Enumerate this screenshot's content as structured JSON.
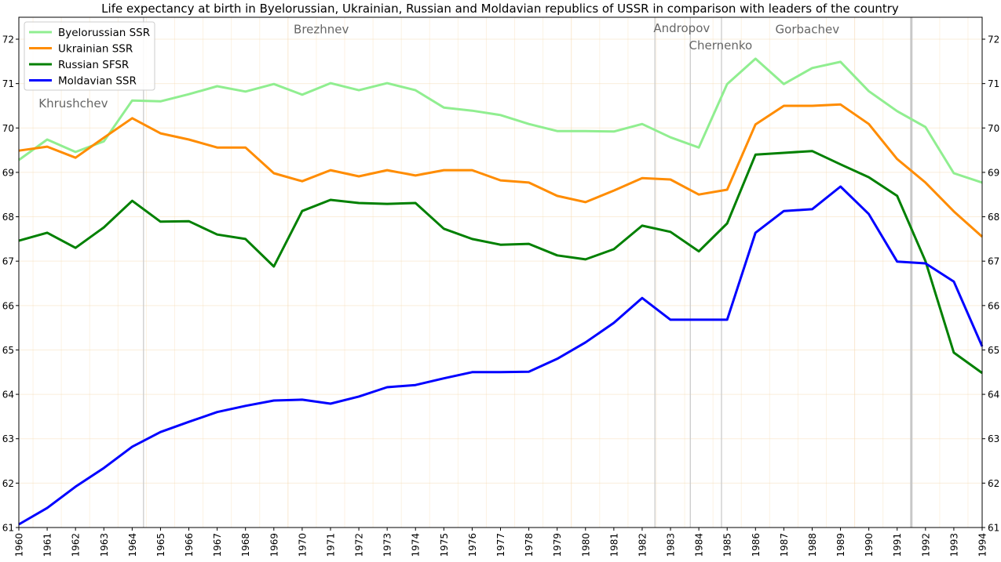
{
  "chart_data": {
    "type": "line",
    "title": "Life expectancy at birth in Byelorussian, Ukrainian, Russian and Moldavian republics of USSR in comparison with leaders of the country",
    "xlabel": "",
    "ylabel": "",
    "xlim": [
      1960,
      1994
    ],
    "ylim": [
      61,
      72.5
    ],
    "yticks": [
      61,
      62,
      63,
      64,
      65,
      66,
      67,
      68,
      69,
      70,
      71,
      72
    ],
    "grid": true,
    "legend_position": "top-left",
    "x": [
      1960,
      1961,
      1962,
      1963,
      1964,
      1965,
      1966,
      1967,
      1968,
      1969,
      1970,
      1971,
      1972,
      1973,
      1974,
      1975,
      1976,
      1977,
      1978,
      1979,
      1980,
      1981,
      1982,
      1983,
      1984,
      1985,
      1986,
      1987,
      1988,
      1989,
      1990,
      1991,
      1992,
      1993,
      1994
    ],
    "series": [
      {
        "name": "Byelorussian SSR",
        "color": "#90ee90",
        "values": [
          69.28,
          69.74,
          69.46,
          69.7,
          70.62,
          70.6,
          70.76,
          70.94,
          70.82,
          70.99,
          70.75,
          71.01,
          70.85,
          71.01,
          70.85,
          70.46,
          70.39,
          70.29,
          70.09,
          69.93,
          69.93,
          69.92,
          70.09,
          69.79,
          69.56,
          70.99,
          71.56,
          70.99,
          71.35,
          71.49,
          70.83,
          70.38,
          70.02,
          68.98,
          68.77
        ]
      },
      {
        "name": "Ukrainian SSR",
        "color": "#ff8c00",
        "values": [
          69.49,
          69.58,
          69.33,
          69.78,
          70.22,
          69.88,
          69.74,
          69.56,
          69.56,
          68.98,
          68.8,
          69.05,
          68.91,
          69.05,
          68.93,
          69.05,
          69.05,
          68.82,
          68.77,
          68.47,
          68.33,
          68.59,
          68.87,
          68.84,
          68.5,
          68.61,
          70.08,
          70.5,
          70.5,
          70.53,
          70.09,
          69.3,
          68.77,
          68.12,
          67.55
        ]
      },
      {
        "name": "Russian SFSR",
        "color": "#008000",
        "values": [
          67.46,
          67.64,
          67.3,
          67.76,
          68.36,
          67.89,
          67.9,
          67.6,
          67.5,
          66.88,
          68.13,
          68.38,
          68.31,
          68.29,
          68.31,
          67.73,
          67.5,
          67.37,
          67.39,
          67.13,
          67.04,
          67.27,
          67.8,
          67.66,
          67.22,
          67.85,
          69.4,
          69.44,
          69.48,
          69.18,
          68.89,
          68.47,
          67.0,
          64.94,
          64.48
        ]
      },
      {
        "name": "Moldavian SSR",
        "color": "#0000ff",
        "values": [
          61.07,
          61.44,
          61.92,
          62.34,
          62.82,
          63.15,
          63.38,
          63.6,
          63.74,
          63.86,
          63.88,
          63.79,
          63.95,
          64.16,
          64.21,
          64.36,
          64.5,
          64.5,
          64.51,
          64.8,
          65.17,
          65.61,
          66.17,
          65.68,
          65.68,
          65.68,
          67.64,
          68.13,
          68.17,
          68.68,
          68.06,
          66.99,
          66.95,
          66.54,
          65.08
        ]
      }
    ],
    "annotations": [
      {
        "text": "Khrushchev",
        "year": 1960.7,
        "value": 70.55
      },
      {
        "text": "Brezhnev",
        "year": 1969.7,
        "value": 72.22
      },
      {
        "text": "Andropov",
        "year": 1982.4,
        "value": 72.25
      },
      {
        "text": "Chernenko",
        "year": 1983.65,
        "value": 71.86
      },
      {
        "text": "Gorbachev",
        "year": 1986.7,
        "value": 72.22
      }
    ],
    "leader_change_years": [
      1964.4,
      1982.45,
      1983.7,
      1984.8,
      1991.5
    ]
  }
}
